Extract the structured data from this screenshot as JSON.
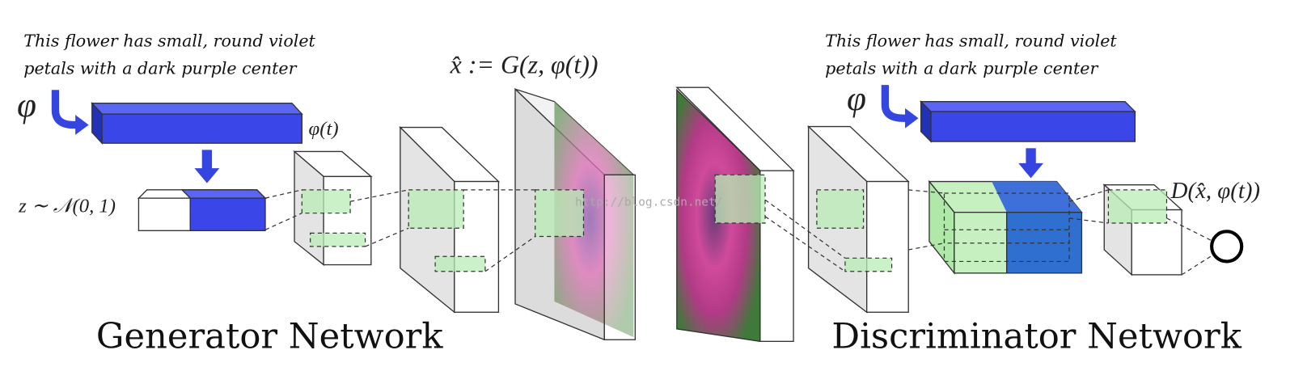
{
  "generator": {
    "caption": [
      "This flower has small, round violet",
      "petals with a dark purple center"
    ],
    "text_symbol": "φ",
    "embedding_label": "φ(t)",
    "noise_label": "z ∼ 𝒩(0, 1)",
    "output_label": "x̂ := G(z, φ(t))",
    "title": "Generator Network"
  },
  "discriminator": {
    "caption": [
      "This flower has small, round violet",
      "petals with a dark purple center"
    ],
    "text_symbol": "φ",
    "output_label": "D(x̂, φ(t))",
    "title": "Discriminator Network"
  },
  "watermark": "http://blog.csdn.net/"
}
